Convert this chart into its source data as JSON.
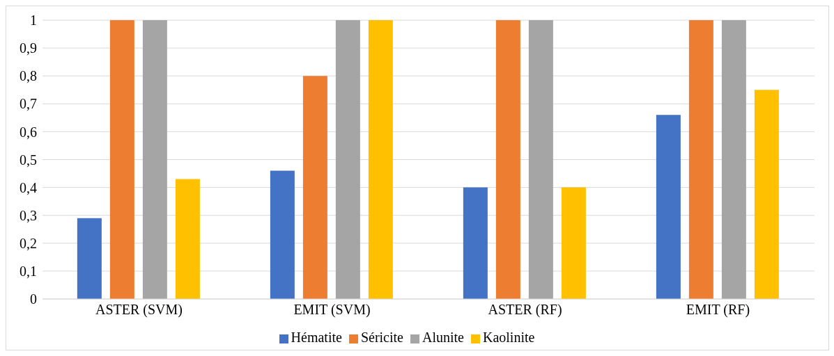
{
  "chart_data": {
    "type": "bar",
    "categories": [
      "ASTER (SVM)",
      "EMIT (SVM)",
      "ASTER (RF)",
      "EMIT (RF)"
    ],
    "series": [
      {
        "name": "Hématite",
        "color": "#4472c4",
        "values": [
          0.29,
          0.46,
          0.4,
          0.66
        ]
      },
      {
        "name": "Séricite",
        "color": "#ed7d31",
        "values": [
          1,
          0.8,
          1,
          1
        ]
      },
      {
        "name": "Alunite",
        "color": "#a5a5a5",
        "values": [
          1,
          1,
          1,
          1
        ]
      },
      {
        "name": "Kaolinite",
        "color": "#ffc000",
        "values": [
          0.43,
          1,
          0.4,
          0.75
        ]
      }
    ],
    "ylim": [
      0,
      1
    ],
    "yticks": [
      {
        "value": 0,
        "label": "0"
      },
      {
        "value": 0.1,
        "label": "0,1"
      },
      {
        "value": 0.2,
        "label": "0,2"
      },
      {
        "value": 0.3,
        "label": "0,3"
      },
      {
        "value": 0.4,
        "label": "0,4"
      },
      {
        "value": 0.5,
        "label": "0,5"
      },
      {
        "value": 0.6,
        "label": "0,6"
      },
      {
        "value": 0.7,
        "label": "0,7"
      },
      {
        "value": 0.8,
        "label": "0,8"
      },
      {
        "value": 0.9,
        "label": "0,9"
      },
      {
        "value": 1,
        "label": "1"
      }
    ],
    "grid": "y",
    "legend": "bottom"
  }
}
